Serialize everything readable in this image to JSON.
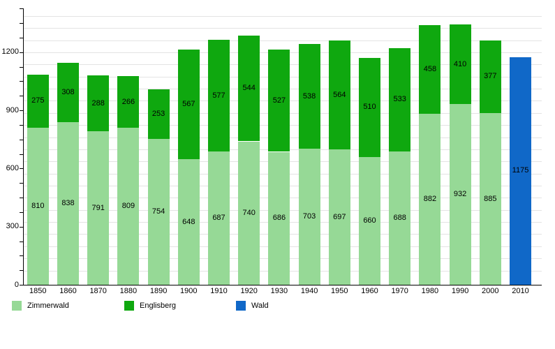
{
  "chart_data": {
    "type": "bar",
    "stacked": true,
    "title": "",
    "xlabel": "",
    "ylabel": "",
    "categories": [
      "1850",
      "1860",
      "1870",
      "1880",
      "1890",
      "1900",
      "1910",
      "1920",
      "1930",
      "1940",
      "1950",
      "1960",
      "1970",
      "1980",
      "1990",
      "2000",
      "2010"
    ],
    "series": [
      {
        "name": "Zimmerwald",
        "color": "#96D996",
        "values": [
          810,
          838,
          791,
          809,
          754,
          648,
          687,
          740,
          686,
          703,
          697,
          660,
          688,
          882,
          932,
          885,
          null
        ]
      },
      {
        "name": "Englisberg",
        "color": "#0FA80F",
        "values": [
          275,
          308,
          288,
          266,
          253,
          567,
          577,
          544,
          527,
          538,
          564,
          510,
          533,
          458,
          410,
          377,
          null
        ]
      },
      {
        "name": "Wald",
        "color": "#1068C8",
        "values": [
          null,
          null,
          null,
          null,
          null,
          null,
          null,
          null,
          null,
          null,
          null,
          null,
          null,
          null,
          null,
          null,
          1175
        ]
      }
    ],
    "y_axis": {
      "tick_labels": [
        "0",
        "300",
        "600",
        "900",
        "1200"
      ],
      "tick_values": [
        0,
        300,
        600,
        900,
        1200
      ],
      "minor_tick_step": 75,
      "ylim": [
        0,
        1425
      ],
      "grid": true
    },
    "legend": {
      "position": "bottom",
      "entries": [
        "Zimmerwald",
        "Englisberg",
        "Wald"
      ]
    },
    "value_labels": "each segment labeled with its value, centered in segment",
    "colors": {
      "background": "#ffffff",
      "gridline": "#e3e3e3",
      "axis": "#000000",
      "text": "#000000"
    }
  }
}
